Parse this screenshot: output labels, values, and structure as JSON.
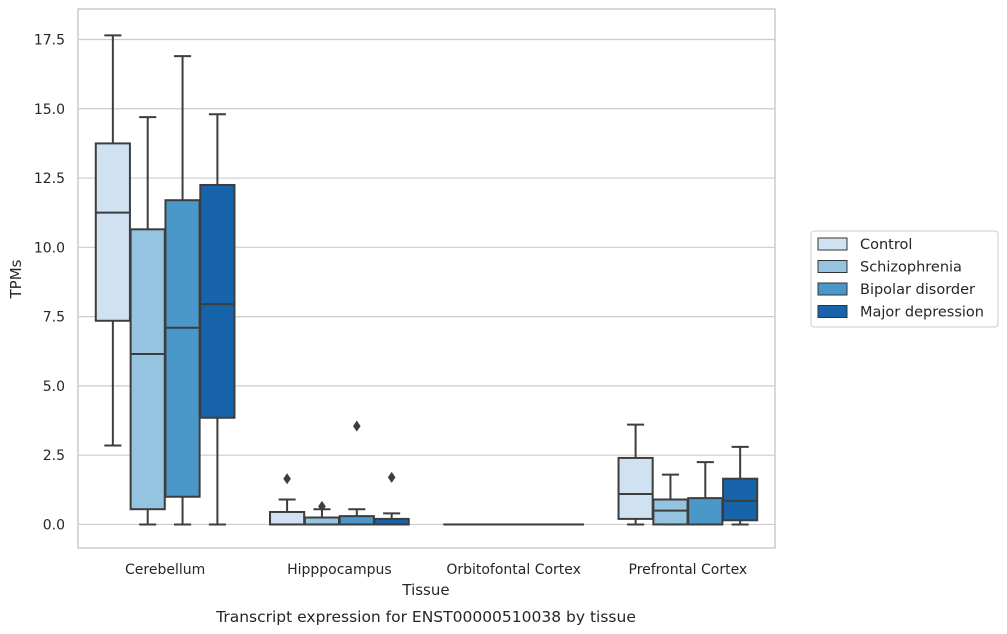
{
  "chart_data": {
    "type": "box",
    "xlabel": "Tissue",
    "ylabel": "TPMs",
    "caption": "Transcript expression for ENST00000510038 by tissue",
    "ylim": [
      -0.85,
      18.6
    ],
    "yticks": [
      0.0,
      2.5,
      5.0,
      7.5,
      10.0,
      12.5,
      15.0,
      17.5
    ],
    "ytick_labels": [
      "0.0",
      "2.5",
      "5.0",
      "7.5",
      "10.0",
      "12.5",
      "15.0",
      "17.5"
    ],
    "grid": "horizontal",
    "legend_position": "right",
    "categories": [
      "Cerebellum",
      "Hipppocampus",
      "Orbitofontal Cortex",
      "Prefrontal Cortex"
    ],
    "series": [
      {
        "name": "Control",
        "color": "#d0e1f2",
        "boxes": [
          {
            "whislo": 2.85,
            "q1": 7.35,
            "med": 11.25,
            "q3": 13.75,
            "whishi": 17.65,
            "fliers": []
          },
          {
            "whislo": 0.0,
            "q1": 0.0,
            "med": 0.0,
            "q3": 0.45,
            "whishi": 0.9,
            "fliers": [
              1.65
            ]
          },
          {
            "whislo": 0.0,
            "q1": 0.0,
            "med": 0.0,
            "q3": 0.0,
            "whishi": 0.0,
            "fliers": []
          },
          {
            "whislo": 0.0,
            "q1": 0.2,
            "med": 1.1,
            "q3": 2.4,
            "whishi": 3.6,
            "fliers": []
          }
        ]
      },
      {
        "name": "Schizophrenia",
        "color": "#94c4df",
        "boxes": [
          {
            "whislo": 0.0,
            "q1": 0.55,
            "med": 6.15,
            "q3": 10.65,
            "whishi": 14.7,
            "fliers": []
          },
          {
            "whislo": 0.0,
            "q1": 0.0,
            "med": 0.0,
            "q3": 0.25,
            "whishi": 0.55,
            "fliers": [
              0.65
            ]
          },
          {
            "whislo": 0.0,
            "q1": 0.0,
            "med": 0.0,
            "q3": 0.0,
            "whishi": 0.0,
            "fliers": []
          },
          {
            "whislo": 0.0,
            "q1": 0.0,
            "med": 0.5,
            "q3": 0.9,
            "whishi": 1.8,
            "fliers": []
          }
        ]
      },
      {
        "name": "Bipolar disorder",
        "color": "#4a98c9",
        "boxes": [
          {
            "whislo": 0.0,
            "q1": 1.0,
            "med": 7.1,
            "q3": 11.7,
            "whishi": 16.9,
            "fliers": []
          },
          {
            "whislo": 0.0,
            "q1": 0.0,
            "med": 0.0,
            "q3": 0.3,
            "whishi": 0.55,
            "fliers": [
              3.55
            ]
          },
          {
            "whislo": 0.0,
            "q1": 0.0,
            "med": 0.0,
            "q3": 0.0,
            "whishi": 0.0,
            "fliers": []
          },
          {
            "whislo": 0.0,
            "q1": 0.0,
            "med": 0.0,
            "q3": 0.95,
            "whishi": 2.25,
            "fliers": []
          }
        ]
      },
      {
        "name": "Major depression",
        "color": "#1764ab",
        "boxes": [
          {
            "whislo": 0.0,
            "q1": 3.85,
            "med": 7.95,
            "q3": 12.25,
            "whishi": 14.8,
            "fliers": []
          },
          {
            "whislo": 0.0,
            "q1": 0.0,
            "med": 0.0,
            "q3": 0.2,
            "whishi": 0.4,
            "fliers": [
              1.7
            ]
          },
          {
            "whislo": 0.0,
            "q1": 0.0,
            "med": 0.0,
            "q3": 0.0,
            "whishi": 0.0,
            "fliers": []
          },
          {
            "whislo": 0.0,
            "q1": 0.15,
            "med": 0.85,
            "q3": 1.65,
            "whishi": 2.8,
            "fliers": []
          }
        ]
      }
    ]
  }
}
